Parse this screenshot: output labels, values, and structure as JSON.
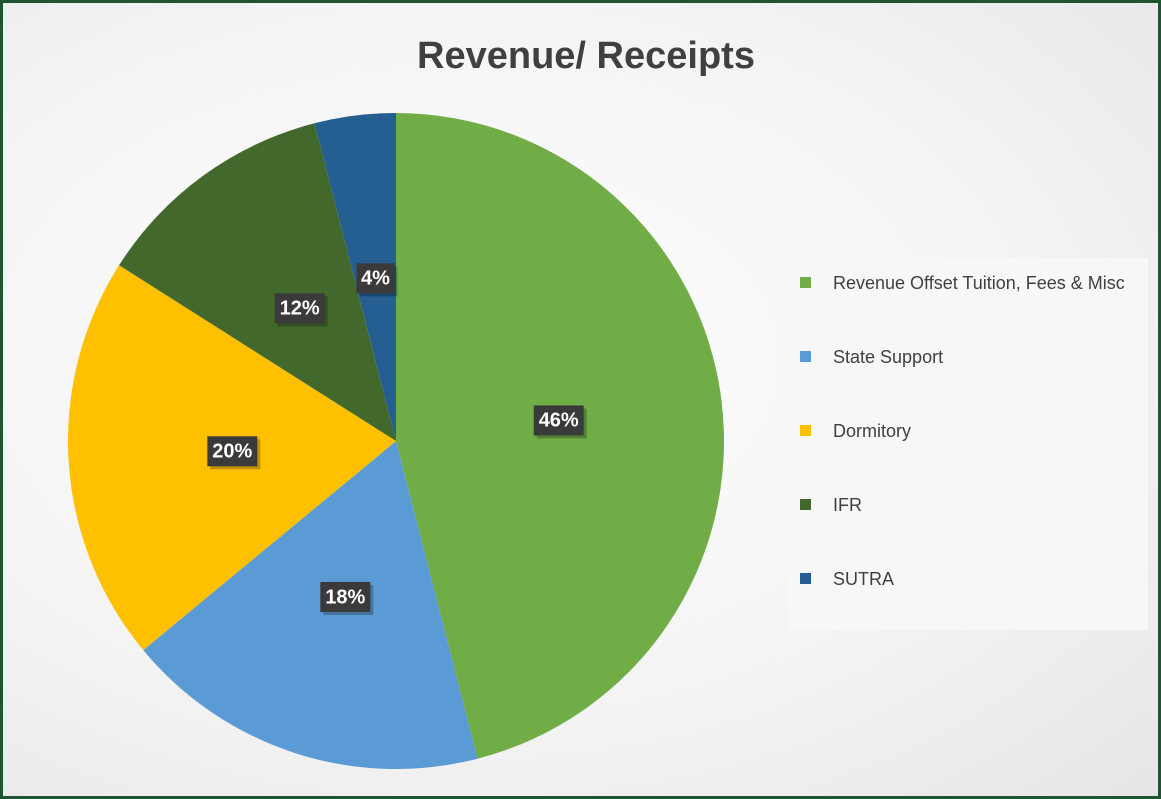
{
  "chart_data": {
    "type": "pie",
    "title": "Revenue/ Receipts",
    "categories": [
      "Revenue Offset Tuition, Fees & Misc",
      "State Support",
      "Dormitory",
      "IFR",
      "SUTRA"
    ],
    "values": [
      46,
      18,
      20,
      12,
      4
    ],
    "value_labels": [
      "46%",
      "18%",
      "20%",
      "12%",
      "4%"
    ],
    "colors": [
      "#70ad47",
      "#5b9bd5",
      "#ffc000",
      "#43682b",
      "#255e91"
    ],
    "legend": "right"
  }
}
